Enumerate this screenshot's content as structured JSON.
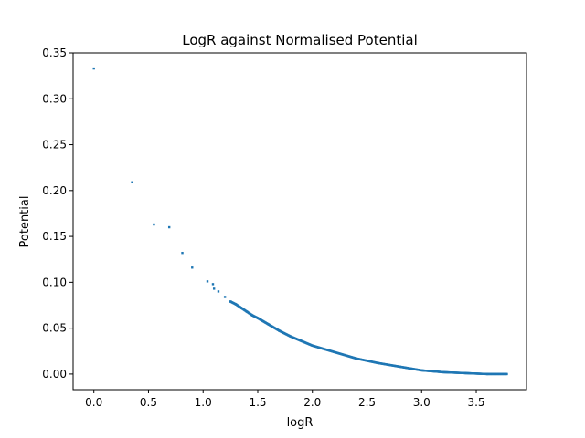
{
  "chart_data": {
    "type": "scatter",
    "title": "LogR against Normalised Potential",
    "xlabel": "logR",
    "ylabel": "Potential",
    "xlim": [
      -0.19,
      3.96
    ],
    "ylim": [
      -0.017,
      0.35
    ],
    "xticks": [
      0.0,
      0.5,
      1.0,
      1.5,
      2.0,
      2.5,
      3.0,
      3.5
    ],
    "xtick_labels": [
      "0.0",
      "0.5",
      "1.0",
      "1.5",
      "2.0",
      "2.5",
      "3.0",
      "3.5"
    ],
    "yticks": [
      0.0,
      0.05,
      0.1,
      0.15,
      0.2,
      0.25,
      0.3,
      0.35
    ],
    "ytick_labels": [
      "0.00",
      "0.05",
      "0.10",
      "0.15",
      "0.20",
      "0.25",
      "0.30",
      "0.35"
    ],
    "grid": false,
    "legend": "none",
    "marker_color": "#1f77b4",
    "curve_range": [
      1.25,
      3.78
    ],
    "points": [
      {
        "x": 0.0,
        "y": 0.333
      },
      {
        "x": 0.35,
        "y": 0.209
      },
      {
        "x": 0.55,
        "y": 0.163
      },
      {
        "x": 0.69,
        "y": 0.16
      },
      {
        "x": 0.81,
        "y": 0.132
      },
      {
        "x": 0.9,
        "y": 0.116
      },
      {
        "x": 1.04,
        "y": 0.101
      },
      {
        "x": 1.09,
        "y": 0.098
      },
      {
        "x": 1.1,
        "y": 0.093
      },
      {
        "x": 1.14,
        "y": 0.09
      },
      {
        "x": 1.2,
        "y": 0.084
      },
      {
        "x": 1.25,
        "y": 0.079
      },
      {
        "x": 1.3,
        "y": 0.076
      },
      {
        "x": 1.35,
        "y": 0.072
      },
      {
        "x": 1.4,
        "y": 0.068
      },
      {
        "x": 1.45,
        "y": 0.064
      },
      {
        "x": 1.5,
        "y": 0.061
      },
      {
        "x": 1.6,
        "y": 0.054
      },
      {
        "x": 1.7,
        "y": 0.047
      },
      {
        "x": 1.8,
        "y": 0.041
      },
      {
        "x": 1.9,
        "y": 0.036
      },
      {
        "x": 2.0,
        "y": 0.031
      },
      {
        "x": 2.2,
        "y": 0.024
      },
      {
        "x": 2.4,
        "y": 0.017
      },
      {
        "x": 2.6,
        "y": 0.012
      },
      {
        "x": 2.8,
        "y": 0.008
      },
      {
        "x": 3.0,
        "y": 0.004
      },
      {
        "x": 3.2,
        "y": 0.002
      },
      {
        "x": 3.4,
        "y": 0.001
      },
      {
        "x": 3.6,
        "y": 0.0
      },
      {
        "x": 3.78,
        "y": 0.0
      }
    ]
  }
}
